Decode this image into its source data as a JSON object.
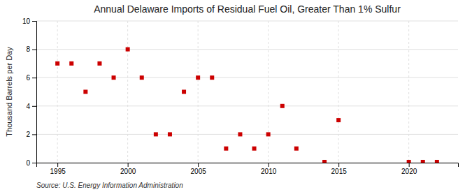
{
  "chart_data": {
    "type": "scatter",
    "title": "Annual Delaware Imports of Residual Fuel Oil, Greater Than 1% Sulfur",
    "ylabel": "Thousand Barrels per Day",
    "source": "Source: U.S. Energy Information Administration",
    "x": [
      1995,
      1996,
      1997,
      1998,
      1999,
      2000,
      2001,
      2002,
      2003,
      2004,
      2005,
      2006,
      2007,
      2008,
      2009,
      2010,
      2011,
      2012,
      2014,
      2015,
      2020,
      2021,
      2022
    ],
    "values": [
      7.0,
      7.0,
      5.0,
      7.0,
      6.0,
      8.0,
      6.0,
      2.0,
      2.0,
      5.0,
      6.0,
      6.0,
      1.0,
      2.0,
      1.0,
      2.0,
      4.0,
      1.0,
      0.05,
      3.0,
      0.05,
      0.05,
      0.05
    ],
    "color": "#cc0000",
    "marker": "square",
    "xlim": [
      1993.5,
      2023.5
    ],
    "ylim": [
      0,
      10
    ],
    "xticks": [
      1995,
      2000,
      2005,
      2010,
      2015,
      2020
    ],
    "yticks": [
      0,
      2,
      4,
      6,
      8,
      10
    ],
    "grid": true
  }
}
